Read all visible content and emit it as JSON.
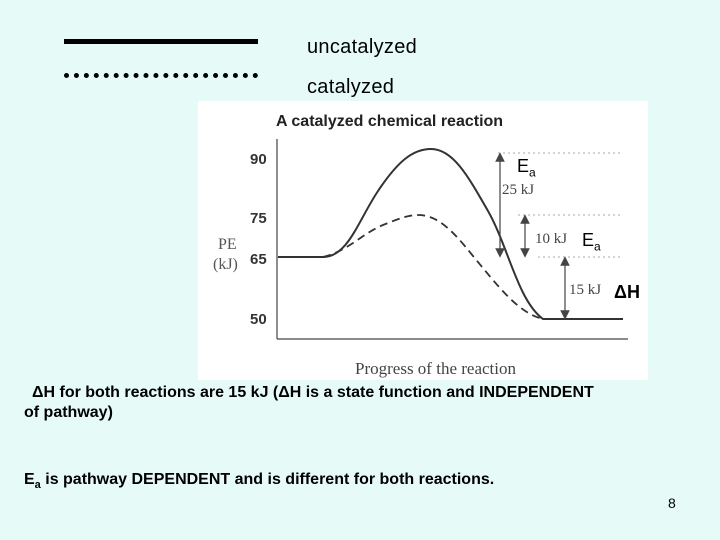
{
  "legend": {
    "uncatalyzed_label": "uncatalyzed",
    "catalyzed_label": "catalyzed"
  },
  "diagram": {
    "title": "A catalyzed chemical reaction",
    "ylabel_line1": "PE",
    "ylabel_line2": "(kJ)",
    "xlabel": "Progress of the reaction",
    "ticks": [
      "90",
      "75",
      "65",
      "50"
    ],
    "annotations": {
      "ea_uncat_value": "25 kJ",
      "ea_cat_value": "10 kJ",
      "dh_value": "15 kJ"
    },
    "energy_levels": {
      "reactants": 65,
      "uncatalyzed_peak": 90,
      "catalyzed_peak": 75,
      "products": 50
    }
  },
  "labels": {
    "ea_symbol": "E",
    "ea_sub": "a",
    "dh_symbol": "ΔH"
  },
  "notes": {
    "note1_line1": "ΔH for both reactions are 15 kJ (ΔH is a state function and INDEPENDENT",
    "note1_line2": "of pathway)",
    "note2_prefix": "E",
    "note2_sub": "a",
    "note2_text": " is pathway DEPENDENT and is different for both reactions."
  },
  "page_number": "8"
}
